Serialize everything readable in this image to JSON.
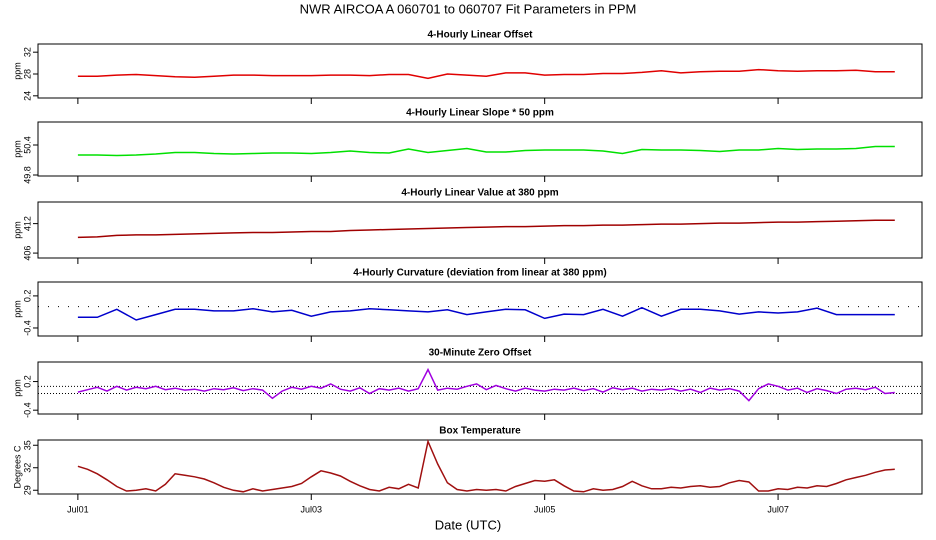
{
  "title": "NWR   AIRCOA A   060701 to 060707   Fit Parameters in PPM",
  "xlabel": "Date (UTC)",
  "chart_data": [
    {
      "type": "line",
      "title": "4-Hourly Linear Offset",
      "ylabel": "ppm",
      "color": "#e00000",
      "xlim": [
        -8.2,
        173.6
      ],
      "xticks": [
        0,
        48,
        96,
        144
      ],
      "ylim": [
        23.6,
        33.5
      ],
      "yticks": [
        24,
        28,
        32
      ],
      "x": [
        0,
        4,
        8,
        12,
        16,
        20,
        24,
        28,
        32,
        36,
        40,
        44,
        48,
        52,
        56,
        60,
        64,
        68,
        72,
        76,
        80,
        84,
        88,
        92,
        96,
        100,
        104,
        108,
        112,
        116,
        120,
        124,
        128,
        132,
        136,
        140,
        144,
        148,
        152,
        156,
        160,
        164,
        168
      ],
      "values": [
        27.6,
        27.6,
        27.8,
        27.9,
        27.7,
        27.5,
        27.4,
        27.6,
        27.8,
        27.8,
        27.7,
        27.7,
        27.7,
        27.8,
        27.8,
        27.7,
        27.9,
        27.9,
        27.2,
        28.0,
        27.8,
        27.6,
        28.2,
        28.2,
        27.8,
        27.9,
        27.9,
        28.1,
        28.1,
        28.3,
        28.6,
        28.2,
        28.4,
        28.5,
        28.5,
        28.8,
        28.6,
        28.5,
        28.6,
        28.6,
        28.7,
        28.4,
        28.4
      ]
    },
    {
      "type": "line",
      "title": "4-Hourly Linear Slope * 50 ppm",
      "ylabel": "ppm",
      "color": "#00e000",
      "xlim": [
        -8.2,
        173.6
      ],
      "xticks": [
        0,
        48,
        96,
        144
      ],
      "ylim": [
        49.78,
        50.86
      ],
      "yticks": [
        49.8,
        50.4
      ],
      "x": [
        0,
        4,
        8,
        12,
        16,
        20,
        24,
        28,
        32,
        36,
        40,
        44,
        48,
        52,
        56,
        60,
        64,
        68,
        72,
        76,
        80,
        84,
        88,
        92,
        96,
        100,
        104,
        108,
        112,
        116,
        120,
        124,
        128,
        132,
        136,
        140,
        144,
        148,
        152,
        156,
        160,
        164,
        168
      ],
      "values": [
        50.2,
        50.2,
        50.19,
        50.2,
        50.22,
        50.25,
        50.25,
        50.23,
        50.22,
        50.23,
        50.24,
        50.24,
        50.23,
        50.25,
        50.28,
        50.25,
        50.24,
        50.32,
        50.25,
        50.29,
        50.33,
        50.26,
        50.26,
        50.29,
        50.3,
        50.3,
        50.3,
        50.28,
        50.23,
        50.31,
        50.3,
        50.3,
        50.29,
        50.27,
        50.3,
        50.3,
        50.33,
        50.31,
        50.32,
        50.32,
        50.33,
        50.37,
        50.37
      ]
    },
    {
      "type": "line",
      "title": "4-Hourly Linear Value at 380 ppm",
      "ylabel": "ppm",
      "color": "#a00000",
      "xlim": [
        -8.2,
        173.6
      ],
      "xticks": [
        0,
        48,
        96,
        144
      ],
      "ylim": [
        405,
        416.4
      ],
      "yticks": [
        406,
        412
      ],
      "x": [
        0,
        4,
        8,
        12,
        16,
        20,
        24,
        28,
        32,
        36,
        40,
        44,
        48,
        52,
        56,
        60,
        64,
        68,
        72,
        76,
        80,
        84,
        88,
        92,
        96,
        100,
        104,
        108,
        112,
        116,
        120,
        124,
        128,
        132,
        136,
        140,
        144,
        148,
        152,
        156,
        160,
        164,
        168
      ],
      "values": [
        409.2,
        409.3,
        409.6,
        409.7,
        409.7,
        409.8,
        409.9,
        410.0,
        410.1,
        410.2,
        410.2,
        410.3,
        410.4,
        410.4,
        410.6,
        410.7,
        410.8,
        410.9,
        411.0,
        411.1,
        411.2,
        411.3,
        411.4,
        411.4,
        411.5,
        411.6,
        411.6,
        411.7,
        411.7,
        411.8,
        411.9,
        411.9,
        412.0,
        412.1,
        412.1,
        412.2,
        412.3,
        412.3,
        412.4,
        412.5,
        412.6,
        412.7,
        412.7
      ]
    },
    {
      "type": "line",
      "title": "4-Hourly Curvature (deviation from linear at 380 ppm)",
      "ylabel": "ppm",
      "color": "#0000cc",
      "xlim": [
        -8.2,
        173.6
      ],
      "xticks": [
        0,
        48,
        96,
        144
      ],
      "ylim": [
        -0.55,
        0.46
      ],
      "yticks": [
        -0.4,
        0.2
      ],
      "hlines": [
        0
      ],
      "x": [
        0,
        4,
        8,
        12,
        16,
        20,
        24,
        28,
        32,
        36,
        40,
        44,
        48,
        52,
        56,
        60,
        64,
        68,
        72,
        76,
        80,
        84,
        88,
        92,
        96,
        100,
        104,
        108,
        112,
        116,
        120,
        124,
        128,
        132,
        136,
        140,
        144,
        148,
        152,
        156,
        160,
        164,
        168
      ],
      "values": [
        -0.2,
        -0.2,
        -0.05,
        -0.25,
        -0.15,
        -0.05,
        -0.05,
        -0.08,
        -0.08,
        -0.04,
        -0.1,
        -0.07,
        -0.18,
        -0.1,
        -0.08,
        -0.04,
        -0.06,
        -0.08,
        -0.1,
        -0.06,
        -0.15,
        -0.1,
        -0.05,
        -0.06,
        -0.22,
        -0.14,
        -0.15,
        -0.05,
        -0.18,
        -0.02,
        -0.18,
        -0.05,
        -0.05,
        -0.08,
        -0.14,
        -0.1,
        -0.12,
        -0.1,
        -0.03,
        -0.15,
        -0.15,
        -0.15,
        -0.15
      ]
    },
    {
      "type": "line",
      "title": "30-Minute Zero Offset",
      "ylabel": "ppm",
      "color": "#a000e0",
      "xlim": [
        -8.2,
        173.6
      ],
      "xticks": [
        0,
        48,
        96,
        144
      ],
      "ylim": [
        -0.48,
        0.61
      ],
      "yticks": [
        -0.4,
        0.2
      ],
      "hlines": [
        0.1,
        -0.05
      ],
      "x": [
        0,
        2,
        4,
        6,
        8,
        10,
        12,
        14,
        16,
        18,
        20,
        22,
        24,
        26,
        28,
        30,
        32,
        34,
        36,
        38,
        40,
        42,
        44,
        46,
        48,
        50,
        52,
        54,
        56,
        58,
        60,
        62,
        64,
        66,
        68,
        70,
        72,
        74,
        76,
        78,
        80,
        82,
        84,
        86,
        88,
        90,
        92,
        94,
        96,
        98,
        100,
        102,
        104,
        106,
        108,
        110,
        112,
        114,
        116,
        118,
        120,
        122,
        124,
        126,
        128,
        130,
        132,
        134,
        136,
        138,
        140,
        142,
        144,
        146,
        148,
        150,
        152,
        154,
        156,
        158,
        160,
        162,
        164,
        166,
        168
      ],
      "values": [
        -0.02,
        0.03,
        0.08,
        0.0,
        0.1,
        0.02,
        0.08,
        0.05,
        0.1,
        0.03,
        0.06,
        0.02,
        0.04,
        0.0,
        0.05,
        0.03,
        0.07,
        0.01,
        0.05,
        0.02,
        -0.15,
        0.0,
        0.08,
        0.04,
        0.1,
        0.06,
        0.15,
        0.04,
        0.0,
        0.07,
        -0.05,
        0.05,
        0.02,
        0.06,
        0.0,
        0.05,
        0.45,
        0.02,
        0.06,
        0.04,
        0.1,
        0.15,
        0.03,
        0.12,
        0.05,
        0.0,
        0.06,
        0.02,
        0.0,
        0.04,
        0.02,
        0.06,
        0.01,
        0.05,
        -0.02,
        0.07,
        0.03,
        0.06,
        0.0,
        0.04,
        0.02,
        0.05,
        0.0,
        0.04,
        -0.03,
        0.06,
        0.02,
        0.05,
        0.0,
        -0.2,
        0.05,
        0.15,
        0.1,
        0.02,
        0.06,
        -0.03,
        0.05,
        0.01,
        -0.05,
        0.04,
        0.06,
        0.03,
        0.08,
        -0.05,
        -0.03
      ]
    },
    {
      "type": "line",
      "title": "Box Temperature",
      "ylabel": "Degrees C",
      "color": "#a01010",
      "xlim": [
        -8.2,
        173.6
      ],
      "xticks": [
        {
          "value": 0,
          "label": "Jul01"
        },
        {
          "value": 48,
          "label": "Jul03"
        },
        {
          "value": 96,
          "label": "Jul05"
        },
        {
          "value": 144,
          "label": "Jul07"
        }
      ],
      "ylim": [
        28.5,
        35.7
      ],
      "yticks": [
        29,
        32,
        35
      ],
      "x": [
        0,
        2,
        4,
        6,
        8,
        10,
        12,
        14,
        16,
        18,
        20,
        22,
        24,
        26,
        28,
        30,
        32,
        34,
        36,
        38,
        40,
        42,
        44,
        46,
        48,
        50,
        52,
        54,
        56,
        58,
        60,
        62,
        64,
        66,
        68,
        70,
        72,
        74,
        76,
        78,
        80,
        82,
        84,
        86,
        88,
        90,
        92,
        94,
        96,
        98,
        100,
        102,
        104,
        106,
        108,
        110,
        112,
        114,
        116,
        118,
        120,
        122,
        124,
        126,
        128,
        130,
        132,
        134,
        136,
        138,
        140,
        142,
        144,
        146,
        148,
        150,
        152,
        154,
        156,
        158,
        160,
        162,
        164,
        166,
        168
      ],
      "values": [
        32.2,
        31.8,
        31.2,
        30.4,
        29.5,
        28.9,
        29.0,
        29.2,
        28.9,
        29.8,
        31.2,
        31.0,
        30.8,
        30.5,
        30.0,
        29.4,
        29.0,
        28.8,
        29.2,
        28.9,
        29.1,
        29.3,
        29.5,
        29.9,
        30.8,
        31.6,
        31.3,
        30.9,
        30.2,
        29.6,
        29.1,
        28.9,
        29.4,
        29.2,
        29.8,
        29.3,
        35.5,
        32.5,
        30.0,
        29.1,
        28.9,
        29.1,
        29.0,
        29.1,
        28.9,
        29.5,
        29.9,
        30.3,
        30.2,
        30.4,
        29.6,
        28.9,
        28.8,
        29.2,
        29.0,
        29.1,
        29.5,
        30.2,
        29.6,
        29.2,
        29.2,
        29.4,
        29.3,
        29.5,
        29.6,
        29.4,
        29.5,
        30.0,
        30.3,
        30.1,
        28.9,
        28.9,
        29.2,
        29.1,
        29.4,
        29.3,
        29.6,
        29.5,
        29.9,
        30.4,
        30.7,
        31.0,
        31.4,
        31.7,
        31.8
      ]
    }
  ]
}
